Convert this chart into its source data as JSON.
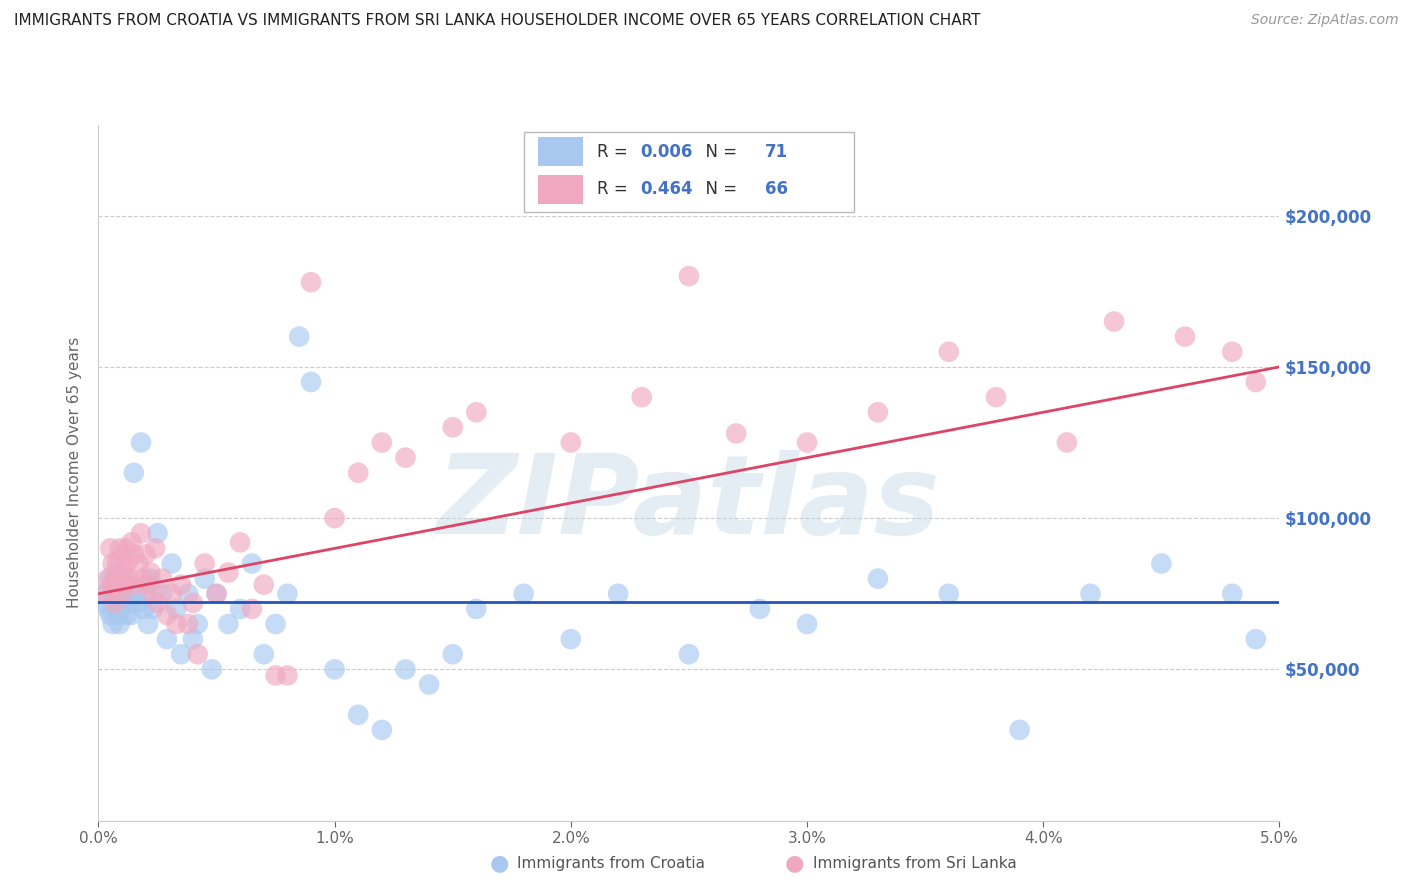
{
  "title": "IMMIGRANTS FROM CROATIA VS IMMIGRANTS FROM SRI LANKA HOUSEHOLDER INCOME OVER 65 YEARS CORRELATION CHART",
  "source": "Source: ZipAtlas.com",
  "ylabel": "Householder Income Over 65 years",
  "xlim": [
    0.0,
    5.0
  ],
  "ylim": [
    0,
    230000
  ],
  "yticks": [
    0,
    50000,
    100000,
    150000,
    200000
  ],
  "ytick_labels": [
    "",
    "$50,000",
    "$100,000",
    "$150,000",
    "$200,000"
  ],
  "croatia_color": "#a8c8f0",
  "srilanka_color": "#f0a8c0",
  "croatia_line_color": "#2255bb",
  "srilanka_line_color": "#dd4466",
  "croatia_R": 0.006,
  "croatia_N": 71,
  "srilanka_R": 0.464,
  "srilanka_N": 66,
  "grid_color": "#cccccc",
  "background_color": "#ffffff",
  "right_tick_color": "#4472c4",
  "watermark_color": "#c5d5e8",
  "watermark_text": "ZIPatlas",
  "croatia_scatter_x": [
    0.02,
    0.03,
    0.04,
    0.05,
    0.05,
    0.06,
    0.06,
    0.07,
    0.07,
    0.08,
    0.08,
    0.09,
    0.09,
    0.1,
    0.1,
    0.11,
    0.11,
    0.12,
    0.12,
    0.13,
    0.14,
    0.14,
    0.15,
    0.16,
    0.17,
    0.18,
    0.19,
    0.2,
    0.21,
    0.22,
    0.23,
    0.25,
    0.27,
    0.29,
    0.31,
    0.33,
    0.35,
    0.38,
    0.4,
    0.42,
    0.45,
    0.48,
    0.5,
    0.55,
    0.6,
    0.65,
    0.7,
    0.75,
    0.8,
    0.85,
    0.9,
    1.0,
    1.1,
    1.2,
    1.3,
    1.4,
    1.5,
    1.6,
    1.8,
    2.0,
    2.2,
    2.5,
    2.8,
    3.0,
    3.3,
    3.6,
    3.9,
    4.2,
    4.5,
    4.8,
    4.9
  ],
  "croatia_scatter_y": [
    75000,
    72000,
    70000,
    68000,
    80000,
    75000,
    65000,
    78000,
    82000,
    72000,
    68000,
    75000,
    65000,
    80000,
    70000,
    75000,
    72000,
    68000,
    78000,
    73000,
    72000,
    68000,
    115000,
    75000,
    72000,
    125000,
    70000,
    75000,
    65000,
    80000,
    70000,
    95000,
    75000,
    60000,
    85000,
    70000,
    55000,
    75000,
    60000,
    65000,
    80000,
    50000,
    75000,
    65000,
    70000,
    85000,
    55000,
    65000,
    75000,
    160000,
    145000,
    50000,
    35000,
    30000,
    50000,
    45000,
    55000,
    70000,
    75000,
    60000,
    75000,
    55000,
    70000,
    65000,
    80000,
    75000,
    30000,
    75000,
    85000,
    75000,
    60000
  ],
  "srilanka_scatter_x": [
    0.03,
    0.04,
    0.05,
    0.06,
    0.06,
    0.07,
    0.07,
    0.08,
    0.08,
    0.09,
    0.09,
    0.1,
    0.1,
    0.11,
    0.11,
    0.12,
    0.12,
    0.13,
    0.14,
    0.15,
    0.16,
    0.17,
    0.18,
    0.19,
    0.2,
    0.21,
    0.22,
    0.23,
    0.24,
    0.25,
    0.27,
    0.29,
    0.31,
    0.33,
    0.35,
    0.38,
    0.4,
    0.42,
    0.45,
    0.5,
    0.55,
    0.6,
    0.65,
    0.7,
    0.75,
    0.8,
    0.9,
    1.0,
    1.1,
    1.2,
    1.3,
    1.5,
    1.6,
    2.0,
    2.3,
    2.5,
    2.7,
    3.0,
    3.3,
    3.6,
    3.8,
    4.1,
    4.3,
    4.6,
    4.8,
    4.9
  ],
  "srilanka_scatter_y": [
    75000,
    80000,
    90000,
    78000,
    85000,
    80000,
    72000,
    85000,
    78000,
    90000,
    80000,
    88000,
    75000,
    82000,
    78000,
    90000,
    85000,
    80000,
    92000,
    88000,
    78000,
    85000,
    95000,
    80000,
    88000,
    78000,
    82000,
    75000,
    90000,
    72000,
    80000,
    68000,
    75000,
    65000,
    78000,
    65000,
    72000,
    55000,
    85000,
    75000,
    82000,
    92000,
    70000,
    78000,
    48000,
    48000,
    178000,
    100000,
    115000,
    125000,
    120000,
    130000,
    135000,
    125000,
    140000,
    180000,
    128000,
    125000,
    135000,
    155000,
    140000,
    125000,
    165000,
    160000,
    155000,
    145000
  ]
}
